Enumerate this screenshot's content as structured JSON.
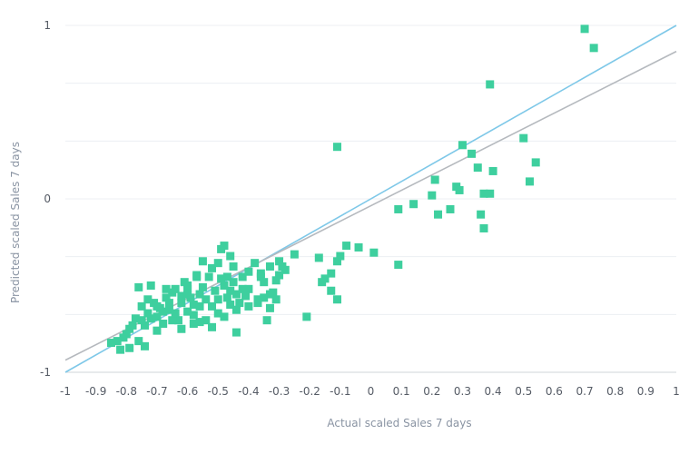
{
  "chart_data": {
    "type": "scatter",
    "xlabel": "Actual scaled Sales 7 days",
    "ylabel": "Predicted scaled Sales 7 days",
    "xlim": [
      -1,
      1
    ],
    "ylim": [
      -1,
      1
    ],
    "x_ticks": [
      "-1",
      "-0.9",
      "-0.8",
      "-0.7",
      "-0.6",
      "-0.5",
      "-0.4",
      "-0.3",
      "-0.2",
      "-0.1",
      "0",
      "0.1",
      "0.2",
      "0.3",
      "0.4",
      "0.5",
      "0.6",
      "0.7",
      "0.8",
      "0.9",
      "1"
    ],
    "y_ticks": [
      "-1",
      "0",
      "1"
    ],
    "grid": true,
    "colors": {
      "points": "#3ecf9e",
      "identity_line": "#7ec8e8",
      "fit_line": "#b5b9be",
      "grid": "#eceff3",
      "axis": "#cfd4da"
    },
    "lines": [
      {
        "kind": "identity",
        "points": [
          [
            -1,
            -1
          ],
          [
            1,
            1
          ]
        ]
      },
      {
        "kind": "fit",
        "points": [
          [
            -1,
            -0.93
          ],
          [
            1,
            0.85
          ]
        ]
      }
    ],
    "points": [
      [
        0.7,
        0.98
      ],
      [
        0.73,
        0.87
      ],
      [
        0.39,
        0.66
      ],
      [
        -0.11,
        0.3
      ],
      [
        0.3,
        0.31
      ],
      [
        0.5,
        0.35
      ],
      [
        0.54,
        0.21
      ],
      [
        0.52,
        0.1
      ],
      [
        0.4,
        0.16
      ],
      [
        0.35,
        0.18
      ],
      [
        0.33,
        0.26
      ],
      [
        0.28,
        0.07
      ],
      [
        0.29,
        0.05
      ],
      [
        0.37,
        0.03
      ],
      [
        0.39,
        0.03
      ],
      [
        0.2,
        0.02
      ],
      [
        0.21,
        0.11
      ],
      [
        0.14,
        -0.03
      ],
      [
        0.09,
        -0.06
      ],
      [
        0.22,
        -0.09
      ],
      [
        0.26,
        -0.06
      ],
      [
        0.36,
        -0.09
      ],
      [
        0.37,
        -0.17
      ],
      [
        0.01,
        -0.31
      ],
      [
        0.09,
        -0.38
      ],
      [
        -0.04,
        -0.28
      ],
      [
        -0.08,
        -0.27
      ],
      [
        -0.1,
        -0.33
      ],
      [
        -0.11,
        -0.36
      ],
      [
        -0.13,
        -0.43
      ],
      [
        -0.13,
        -0.53
      ],
      [
        -0.11,
        -0.58
      ],
      [
        -0.15,
        -0.46
      ],
      [
        -0.16,
        -0.48
      ],
      [
        -0.17,
        -0.34
      ],
      [
        -0.21,
        -0.68
      ],
      [
        -0.25,
        -0.32
      ],
      [
        -0.29,
        -0.39
      ],
      [
        -0.3,
        -0.44
      ],
      [
        -0.31,
        -0.47
      ],
      [
        -0.32,
        -0.54
      ],
      [
        -0.33,
        -0.63
      ],
      [
        -0.34,
        -0.7
      ],
      [
        -0.35,
        -0.57
      ],
      [
        -0.33,
        -0.39
      ],
      [
        -0.36,
        -0.45
      ],
      [
        -0.37,
        -0.58
      ],
      [
        -0.4,
        -0.52
      ],
      [
        -0.41,
        -0.56
      ],
      [
        -0.42,
        -0.52
      ],
      [
        -0.43,
        -0.6
      ],
      [
        -0.44,
        -0.55
      ],
      [
        -0.45,
        -0.48
      ],
      [
        -0.46,
        -0.53
      ],
      [
        -0.47,
        -0.57
      ],
      [
        -0.48,
        -0.5
      ],
      [
        -0.49,
        -0.46
      ],
      [
        -0.5,
        -0.58
      ],
      [
        -0.51,
        -0.53
      ],
      [
        -0.52,
        -0.62
      ],
      [
        -0.53,
        -0.45
      ],
      [
        -0.55,
        -0.51
      ],
      [
        -0.56,
        -0.55
      ],
      [
        -0.56,
        -0.62
      ],
      [
        -0.57,
        -0.45
      ],
      [
        -0.58,
        -0.67
      ],
      [
        -0.59,
        -0.57
      ],
      [
        -0.6,
        -0.52
      ],
      [
        -0.61,
        -0.48
      ],
      [
        -0.62,
        -0.6
      ],
      [
        -0.63,
        -0.7
      ],
      [
        -0.65,
        -0.54
      ],
      [
        -0.66,
        -0.6
      ],
      [
        -0.67,
        -0.57
      ],
      [
        -0.68,
        -0.65
      ],
      [
        -0.69,
        -0.63
      ],
      [
        -0.71,
        -0.6
      ],
      [
        -0.72,
        -0.69
      ],
      [
        -0.73,
        -0.58
      ],
      [
        -0.75,
        -0.62
      ],
      [
        -0.77,
        -0.69
      ],
      [
        -0.78,
        -0.73
      ],
      [
        -0.79,
        -0.75
      ],
      [
        -0.8,
        -0.78
      ],
      [
        -0.81,
        -0.8
      ],
      [
        -0.83,
        -0.82
      ],
      [
        -0.85,
        -0.83
      ],
      [
        -0.82,
        -0.87
      ],
      [
        -0.79,
        -0.86
      ],
      [
        -0.76,
        -0.82
      ],
      [
        -0.74,
        -0.85
      ],
      [
        -0.76,
        -0.51
      ],
      [
        -0.72,
        -0.5
      ],
      [
        -0.67,
        -0.52
      ],
      [
        -0.64,
        -0.52
      ],
      [
        -0.6,
        -0.5
      ],
      [
        -0.57,
        -0.44
      ],
      [
        -0.55,
        -0.36
      ],
      [
        -0.52,
        -0.4
      ],
      [
        -0.5,
        -0.37
      ],
      [
        -0.48,
        -0.27
      ],
      [
        -0.49,
        -0.29
      ],
      [
        -0.46,
        -0.33
      ],
      [
        -0.45,
        -0.39
      ],
      [
        -0.47,
        -0.45
      ],
      [
        -0.4,
        -0.42
      ],
      [
        -0.38,
        -0.37
      ],
      [
        -0.35,
        -0.48
      ],
      [
        -0.3,
        -0.36
      ],
      [
        -0.28,
        -0.41
      ],
      [
        -0.36,
        -0.43
      ],
      [
        -0.42,
        -0.45
      ],
      [
        -0.46,
        -0.61
      ],
      [
        -0.5,
        -0.66
      ],
      [
        -0.54,
        -0.7
      ],
      [
        -0.58,
        -0.72
      ],
      [
        -0.62,
        -0.75
      ],
      [
        -0.65,
        -0.7
      ],
      [
        -0.68,
        -0.72
      ],
      [
        -0.7,
        -0.76
      ],
      [
        -0.74,
        -0.73
      ],
      [
        -0.56,
        -0.71
      ],
      [
        -0.52,
        -0.74
      ],
      [
        -0.48,
        -0.68
      ],
      [
        -0.44,
        -0.64
      ],
      [
        -0.4,
        -0.62
      ],
      [
        -0.37,
        -0.6
      ],
      [
        -0.33,
        -0.55
      ],
      [
        -0.31,
        -0.58
      ],
      [
        -0.6,
        -0.65
      ],
      [
        -0.64,
        -0.66
      ],
      [
        -0.7,
        -0.62
      ],
      [
        -0.73,
        -0.66
      ],
      [
        -0.44,
        -0.77
      ],
      [
        -0.6,
        -0.55
      ],
      [
        -0.54,
        -0.58
      ],
      [
        -0.62,
        -0.56
      ],
      [
        -0.58,
        -0.61
      ],
      [
        -0.66,
        -0.64
      ],
      [
        -0.7,
        -0.68
      ],
      [
        -0.75,
        -0.7
      ]
    ]
  }
}
